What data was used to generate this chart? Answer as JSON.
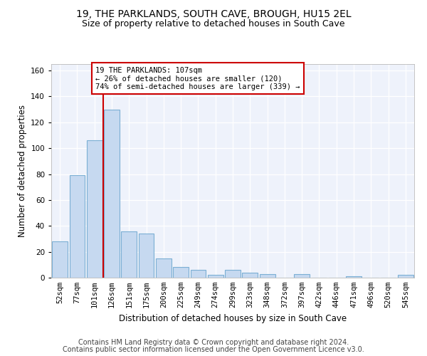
{
  "title": "19, THE PARKLANDS, SOUTH CAVE, BROUGH, HU15 2EL",
  "subtitle": "Size of property relative to detached houses in South Cave",
  "xlabel": "Distribution of detached houses by size in South Cave",
  "ylabel": "Number of detached properties",
  "bar_labels": [
    "52sqm",
    "77sqm",
    "101sqm",
    "126sqm",
    "151sqm",
    "175sqm",
    "200sqm",
    "225sqm",
    "249sqm",
    "274sqm",
    "299sqm",
    "323sqm",
    "348sqm",
    "372sqm",
    "397sqm",
    "422sqm",
    "446sqm",
    "471sqm",
    "496sqm",
    "520sqm",
    "545sqm"
  ],
  "bar_values": [
    28,
    79,
    106,
    130,
    36,
    34,
    15,
    8,
    6,
    2,
    6,
    4,
    3,
    0,
    3,
    0,
    0,
    1,
    0,
    0,
    2
  ],
  "bar_color": "#c6d9f0",
  "bar_edge_color": "#7bafd4",
  "ylim": [
    0,
    165
  ],
  "yticks": [
    0,
    20,
    40,
    60,
    80,
    100,
    120,
    140,
    160
  ],
  "vline_x_index": 2,
  "vline_color": "#cc0000",
  "annotation_text": "19 THE PARKLANDS: 107sqm\n← 26% of detached houses are smaller (120)\n74% of semi-detached houses are larger (339) →",
  "annotation_box_color": "#ffffff",
  "annotation_box_edgecolor": "#cc0000",
  "footer_line1": "Contains HM Land Registry data © Crown copyright and database right 2024.",
  "footer_line2": "Contains public sector information licensed under the Open Government Licence v3.0.",
  "bg_color": "#eef2fb",
  "grid_color": "#ffffff",
  "title_fontsize": 10,
  "subtitle_fontsize": 9,
  "axis_label_fontsize": 8.5,
  "tick_fontsize": 7.5,
  "footer_fontsize": 7
}
